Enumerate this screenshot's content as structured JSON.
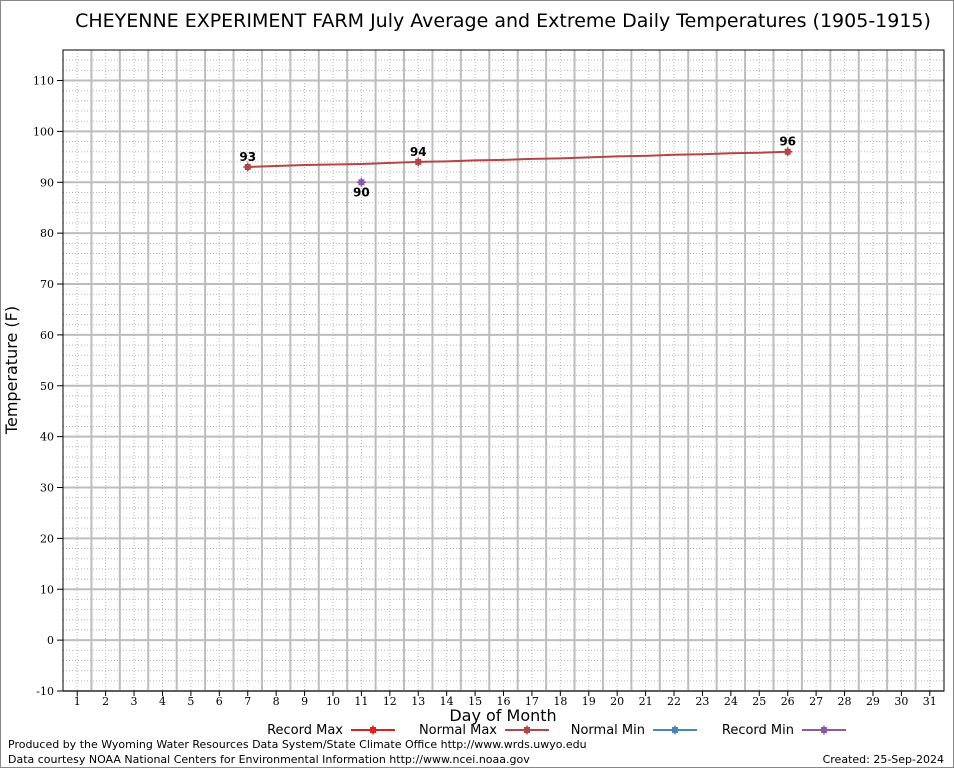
{
  "chart_data": {
    "type": "line",
    "title": "CHEYENNE EXPERIMENT FARM July Average and Extreme Daily Temperatures (1905-1915)",
    "xlabel": "Day of Month",
    "ylabel": "Temperature (F)",
    "xlim": [
      0.5,
      31.5
    ],
    "ylim": [
      -10,
      116
    ],
    "x_ticks": [
      1,
      2,
      3,
      4,
      5,
      6,
      7,
      8,
      9,
      10,
      11,
      12,
      13,
      14,
      15,
      16,
      17,
      18,
      19,
      20,
      21,
      22,
      23,
      24,
      25,
      26,
      27,
      28,
      29,
      30,
      31
    ],
    "y_ticks": [
      -10,
      0,
      10,
      20,
      30,
      40,
      50,
      60,
      70,
      80,
      90,
      100,
      110
    ],
    "grid": true,
    "legend_position": "bottom",
    "series": [
      {
        "name": "Record Max",
        "color": "#e02020",
        "x": [],
        "y": []
      },
      {
        "name": "Normal Max",
        "color": "#b54545",
        "x": [
          7,
          8,
          9,
          10,
          11,
          12,
          13,
          14,
          15,
          16,
          17,
          18,
          19,
          20,
          21,
          22,
          23,
          24,
          25,
          26
        ],
        "y": [
          93,
          93.2,
          93.4,
          93.5,
          93.6,
          93.8,
          94,
          94.1,
          94.3,
          94.4,
          94.6,
          94.7,
          94.9,
          95.1,
          95.2,
          95.4,
          95.5,
          95.7,
          95.8,
          96
        ]
      },
      {
        "name": "Normal Min",
        "color": "#4a87b8",
        "x": [],
        "y": []
      },
      {
        "name": "Record Min",
        "color": "#8a5aa8",
        "x": [
          11
        ],
        "y": [
          90
        ]
      }
    ],
    "annotations": [
      {
        "series": "Normal Max",
        "x": 7,
        "y": 93,
        "text": "93",
        "position": "above"
      },
      {
        "series": "Normal Max",
        "x": 13,
        "y": 94,
        "text": "94",
        "position": "above"
      },
      {
        "series": "Normal Max",
        "x": 26,
        "y": 96,
        "text": "96",
        "position": "above"
      },
      {
        "series": "Record Min",
        "x": 11,
        "y": 90,
        "text": "90",
        "position": "below"
      }
    ]
  },
  "footer": {
    "line1": "Produced by the Wyoming Water Resources Data System/State Climate Office http://www.wrds.uwyo.edu",
    "line2": "Data courtesy NOAA National Centers for Environmental Information http://www.ncei.noaa.gov",
    "created": "Created:  25-Sep-2024"
  }
}
